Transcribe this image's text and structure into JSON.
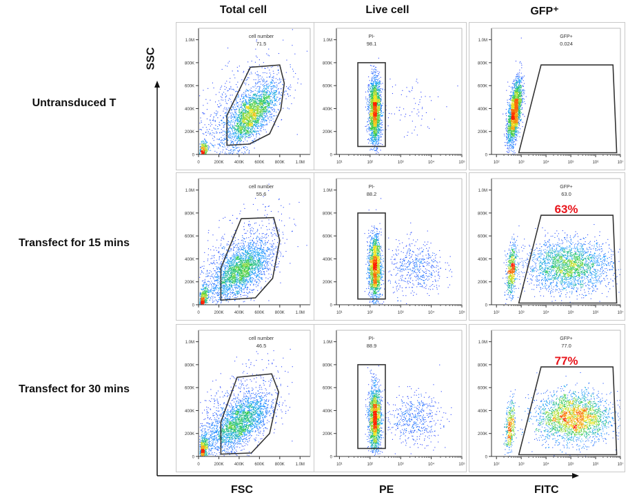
{
  "columns": [
    "Total cell",
    "Live cell",
    "GFP⁺"
  ],
  "rows": [
    "Untransduced T",
    "Transfect for 15 mins",
    "Transfect for 30 mins"
  ],
  "axes": {
    "y": "SSC",
    "x": [
      "FSC",
      "PE",
      "FITC"
    ]
  },
  "colors": {
    "highlight": "#e8141b",
    "gate": "#333333",
    "density_low": "#1a1aff",
    "density_high": "#ff2000"
  },
  "chart_data": [
    {
      "type": "scatter",
      "row": 0,
      "col": 0,
      "x_scale": "linear",
      "xlim": [
        0,
        1100000
      ],
      "ylim": [
        0,
        1100000
      ],
      "x_ticks": [
        "0",
        "200K",
        "400K",
        "600K",
        "800K",
        "1.0M"
      ],
      "y_ticks": [
        "0",
        "200K",
        "400K",
        "600K",
        "800K",
        "1.0M"
      ],
      "gate": {
        "label": "cell number",
        "value": "71.5",
        "shape": "polygon",
        "points": [
          [
            280000,
            80000
          ],
          [
            280000,
            340000
          ],
          [
            510000,
            760000
          ],
          [
            800000,
            780000
          ],
          [
            845000,
            620000
          ],
          [
            810000,
            390000
          ],
          [
            700000,
            180000
          ],
          [
            500000,
            90000
          ]
        ]
      }
    },
    {
      "type": "scatter",
      "row": 0,
      "col": 1,
      "x_scale": "log",
      "xlim": [
        0.9,
        5
      ],
      "ylim": [
        0,
        1100000
      ],
      "x_ticks": [
        "10¹",
        "10²",
        "10³",
        "10⁴",
        "10⁵"
      ],
      "y_ticks": [
        "0",
        "200K",
        "400K",
        "600K",
        "800K",
        "1.0M"
      ],
      "gate": {
        "label": "PI-",
        "value": "98.1",
        "shape": "rect",
        "points": [
          [
            1.6,
            70000
          ],
          [
            2.5,
            800000
          ]
        ]
      }
    },
    {
      "type": "scatter",
      "row": 0,
      "col": 2,
      "x_scale": "log",
      "xlim": [
        1.8,
        7
      ],
      "ylim": [
        0,
        1100000
      ],
      "x_ticks": [
        "10²",
        "10³",
        "10⁴",
        "10⁵",
        "10⁶",
        "10⁷"
      ],
      "y_ticks": [
        "0",
        "200K",
        "400K",
        "600K",
        "800K",
        "1.0M"
      ],
      "gate": {
        "label": "GFP+",
        "value": "0.024",
        "shape": "polygon",
        "points": [
          [
            2.9,
            15000
          ],
          [
            3.8,
            780000
          ],
          [
            6.7,
            780000
          ],
          [
            6.85,
            15000
          ]
        ]
      }
    },
    {
      "type": "scatter",
      "row": 1,
      "col": 0,
      "x_scale": "linear",
      "xlim": [
        0,
        1100000
      ],
      "ylim": [
        0,
        1100000
      ],
      "x_ticks": [
        "0",
        "200K",
        "400K",
        "600K",
        "800K",
        "1.0M"
      ],
      "y_ticks": [
        "0",
        "200K",
        "400K",
        "600K",
        "800K",
        "1.0M"
      ],
      "gate": {
        "label": "cell number",
        "value": "55.6",
        "shape": "polygon",
        "points": [
          [
            220000,
            40000
          ],
          [
            220000,
            320000
          ],
          [
            420000,
            750000
          ],
          [
            740000,
            760000
          ],
          [
            800000,
            560000
          ],
          [
            730000,
            230000
          ],
          [
            560000,
            60000
          ]
        ]
      }
    },
    {
      "type": "scatter",
      "row": 1,
      "col": 1,
      "x_scale": "log",
      "xlim": [
        0.9,
        5
      ],
      "ylim": [
        0,
        1100000
      ],
      "x_ticks": [
        "10¹",
        "10²",
        "10³",
        "10⁴",
        "10⁵"
      ],
      "y_ticks": [
        "0",
        "200K",
        "400K",
        "600K",
        "800K",
        "1.0M"
      ],
      "gate": {
        "label": "PI-",
        "value": "88.2",
        "shape": "rect",
        "points": [
          [
            1.6,
            50000
          ],
          [
            2.5,
            800000
          ]
        ]
      }
    },
    {
      "type": "scatter",
      "row": 1,
      "col": 2,
      "x_scale": "log",
      "xlim": [
        1.8,
        7
      ],
      "ylim": [
        0,
        1100000
      ],
      "x_ticks": [
        "10²",
        "10³",
        "10⁴",
        "10⁵",
        "10⁶",
        "10⁷"
      ],
      "y_ticks": [
        "0",
        "200K",
        "400K",
        "600K",
        "800K",
        "1.0M"
      ],
      "gate": {
        "label": "GFP+",
        "value": "63.0",
        "highlight": "63%",
        "shape": "polygon",
        "points": [
          [
            2.9,
            15000
          ],
          [
            3.8,
            780000
          ],
          [
            6.7,
            780000
          ],
          [
            6.85,
            15000
          ]
        ]
      }
    },
    {
      "type": "scatter",
      "row": 2,
      "col": 0,
      "x_scale": "linear",
      "xlim": [
        0,
        1100000
      ],
      "ylim": [
        0,
        1100000
      ],
      "x_ticks": [
        "0",
        "200K",
        "400K",
        "600K",
        "800K",
        "1.0M"
      ],
      "y_ticks": [
        "0",
        "200K",
        "400K",
        "600K",
        "800K",
        "1.0M"
      ],
      "gate": {
        "label": "cell number",
        "value": "46.5",
        "shape": "polygon",
        "points": [
          [
            220000,
            20000
          ],
          [
            220000,
            300000
          ],
          [
            380000,
            690000
          ],
          [
            720000,
            720000
          ],
          [
            790000,
            560000
          ],
          [
            700000,
            200000
          ],
          [
            520000,
            30000
          ]
        ]
      }
    },
    {
      "type": "scatter",
      "row": 2,
      "col": 1,
      "x_scale": "log",
      "xlim": [
        0.9,
        5
      ],
      "ylim": [
        0,
        1100000
      ],
      "x_ticks": [
        "10¹",
        "10²",
        "10³",
        "10⁴",
        "10⁵"
      ],
      "y_ticks": [
        "0",
        "200K",
        "400K",
        "600K",
        "800K",
        "1.0M"
      ],
      "gate": {
        "label": "PI-",
        "value": "88.9",
        "shape": "rect",
        "points": [
          [
            1.6,
            70000
          ],
          [
            2.5,
            800000
          ]
        ]
      }
    },
    {
      "type": "scatter",
      "row": 2,
      "col": 2,
      "x_scale": "log",
      "xlim": [
        1.8,
        7
      ],
      "ylim": [
        0,
        1100000
      ],
      "x_ticks": [
        "10²",
        "10³",
        "10⁴",
        "10⁵",
        "10⁶",
        "10⁷"
      ],
      "y_ticks": [
        "0",
        "200K",
        "400K",
        "600K",
        "800K",
        "1.0M"
      ],
      "gate": {
        "label": "GFP+",
        "value": "77.0",
        "highlight": "77%",
        "shape": "polygon",
        "points": [
          [
            2.9,
            15000
          ],
          [
            3.8,
            780000
          ],
          [
            6.7,
            780000
          ],
          [
            6.85,
            15000
          ]
        ]
      }
    }
  ]
}
